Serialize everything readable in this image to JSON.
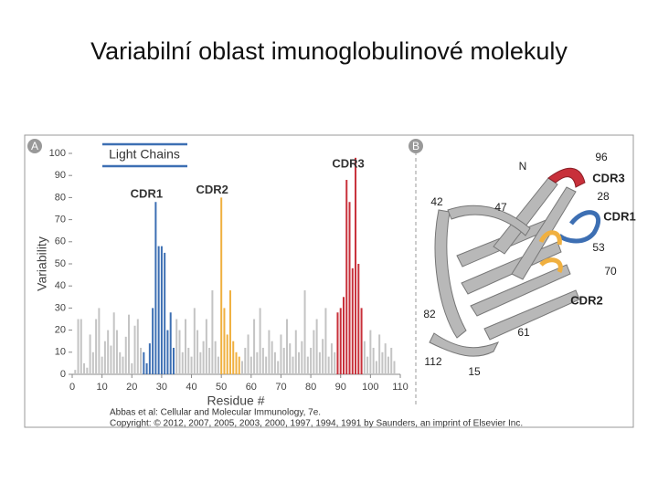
{
  "slide_title": "Variabilní oblast imunoglobulinové molekuly",
  "figure_labels": [
    "A",
    "B"
  ],
  "credit": [
    "Abbas et al: Cellular and Molecular Immunology, 7e.",
    "Copyright: © 2012, 2007, 2005, 2003, 2000, 1997, 1994, 1991 by Saunders, an imprint of Elsevier Inc."
  ],
  "chart_data": {
    "type": "bar",
    "title": "Light Chains",
    "xlabel": "Residue #",
    "ylabel": "Variability",
    "xlim": [
      0,
      110
    ],
    "xticks": [
      0,
      10,
      20,
      30,
      40,
      50,
      60,
      70,
      80,
      90,
      100,
      110
    ],
    "ylim": [
      0,
      100
    ],
    "yticks": [
      0,
      10,
      20,
      30,
      40,
      50,
      60,
      70,
      80,
      90,
      100
    ],
    "series": [
      {
        "color": "#c4c4c4",
        "x": [
          1,
          2,
          3,
          4,
          5,
          6,
          7,
          8,
          9,
          10,
          11,
          12,
          13,
          14,
          15,
          16,
          17,
          18,
          19,
          20,
          21,
          22,
          23,
          35,
          36,
          37,
          38,
          39,
          40,
          41,
          42,
          43,
          44,
          45,
          46,
          47,
          48,
          49,
          57,
          58,
          59,
          60,
          61,
          62,
          63,
          64,
          65,
          66,
          67,
          68,
          69,
          70,
          71,
          72,
          73,
          74,
          75,
          76,
          77,
          78,
          79,
          80,
          81,
          82,
          83,
          84,
          85,
          86,
          87,
          88,
          98,
          99,
          100,
          101,
          102,
          103,
          104,
          105,
          106,
          107,
          108
        ],
        "values": [
          2,
          25,
          25,
          5,
          3,
          18,
          10,
          25,
          30,
          8,
          15,
          20,
          13,
          28,
          20,
          10,
          8,
          17,
          27,
          5,
          22,
          25,
          12,
          25,
          20,
          10,
          25,
          12,
          8,
          30,
          20,
          10,
          15,
          25,
          12,
          38,
          15,
          8,
          6,
          12,
          18,
          8,
          25,
          10,
          30,
          12,
          8,
          20,
          15,
          10,
          6,
          18,
          12,
          25,
          14,
          8,
          20,
          10,
          15,
          38,
          8,
          12,
          20,
          25,
          10,
          16,
          30,
          8,
          14,
          10,
          15,
          8,
          20,
          12,
          6,
          18,
          10,
          14,
          8,
          12,
          6
        ]
      },
      {
        "name": "CDR1",
        "color": "#3d6fb3",
        "x": [
          24,
          25,
          26,
          27,
          28,
          29,
          30,
          31,
          32,
          33,
          34
        ],
        "values": [
          10,
          5,
          14,
          30,
          78,
          58,
          58,
          55,
          20,
          28,
          12
        ]
      },
      {
        "name": "CDR2",
        "color": "#f0b040",
        "x": [
          50,
          51,
          52,
          53,
          54,
          55,
          56
        ],
        "values": [
          80,
          30,
          18,
          38,
          15,
          10,
          8
        ]
      },
      {
        "name": "CDR3",
        "color": "#c8303a",
        "x": [
          89,
          90,
          91,
          92,
          93,
          94,
          95,
          96,
          97
        ],
        "values": [
          28,
          30,
          35,
          88,
          78,
          48,
          98,
          50,
          30
        ]
      }
    ]
  },
  "panel_b": {
    "labels": [
      "N",
      "96",
      "CDR3",
      "28",
      "CDR1",
      "53",
      "70",
      "CDR2",
      "42",
      "47",
      "82",
      "61",
      "112",
      "15"
    ]
  }
}
